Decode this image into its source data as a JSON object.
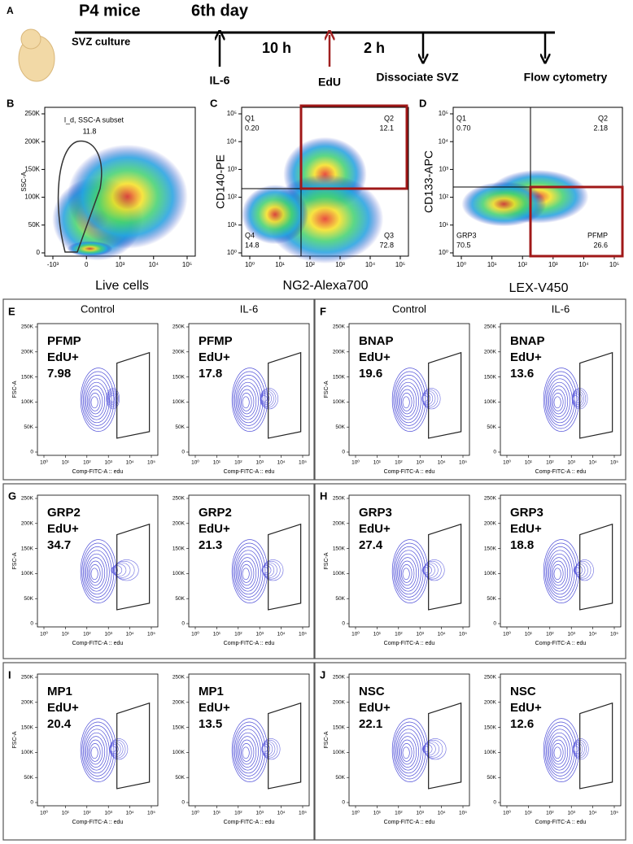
{
  "timeline": {
    "letter": "A",
    "mouse": "P4 mice",
    "day": "6th day",
    "culture": "SVZ culture",
    "step1": "IL-6",
    "gap1": "10 h",
    "step2": "EdU",
    "gap2": "2 h",
    "step3": "Dissociate SVZ",
    "step4": "Flow cytometry"
  },
  "gating": [
    {
      "letter": "B",
      "ylabel": "SSC-A",
      "xlabel": "Live cells",
      "yticks": [
        "250K",
        "200K",
        "150K",
        "100K",
        "50K",
        "0"
      ],
      "xticks": [
        "-10³",
        "0",
        "10³",
        "10⁴",
        "10⁵"
      ],
      "gate_name": "l_d, SSC-A subset",
      "gate_value": "11.8"
    },
    {
      "letter": "C",
      "ylabel": "CD140-PE",
      "xlabel": "NG2-Alexa700",
      "yticks": [
        "10⁵",
        "10⁴",
        "10³",
        "10²",
        "10¹",
        "10⁰"
      ],
      "xticks": [
        "10⁰",
        "10¹",
        "10²",
        "10³",
        "10⁴",
        "10⁵"
      ],
      "quadrants": [
        {
          "name": "Q1",
          "value": "0.20"
        },
        {
          "name": "Q2",
          "value": "12.1"
        },
        {
          "name": "Q4",
          "value": "14.8"
        },
        {
          "name": "Q3",
          "value": "72.8"
        }
      ]
    },
    {
      "letter": "D",
      "ylabel": "CD133-APC",
      "xlabel": "LEX-V450",
      "yticks": [
        "10⁵",
        "10⁴",
        "10³",
        "10²",
        "10¹",
        "10⁰"
      ],
      "xticks": [
        "10⁰",
        "10¹",
        "10²",
        "10³",
        "10⁴",
        "10⁵"
      ],
      "quadrants": [
        {
          "name": "Q1",
          "value": "0.70"
        },
        {
          "name": "Q2",
          "value": "2.18"
        },
        {
          "name": "GRP3",
          "value": "70.5"
        },
        {
          "name": "PFMP",
          "value": "26.6"
        }
      ]
    }
  ],
  "contour_axes": {
    "ylabel": "FSC-A",
    "xlabel": "Comp-FITC-A :: edu",
    "yticks": [
      "250K",
      "200K",
      "150K",
      "100K",
      "50K",
      "0"
    ],
    "xticks": [
      "10⁰",
      "10¹",
      "10²",
      "10³",
      "10⁴",
      "10⁵"
    ]
  },
  "contour_panels": [
    {
      "letter": "E",
      "columns": [
        "Control",
        "IL-6"
      ],
      "plots": [
        {
          "population": "PFMP",
          "marker": "EdU+",
          "value": "7.98"
        },
        {
          "population": "PFMP",
          "marker": "EdU+",
          "value": "17.8"
        }
      ]
    },
    {
      "letter": "F",
      "columns": [
        "Control",
        "IL-6"
      ],
      "plots": [
        {
          "population": "BNAP",
          "marker": "EdU+",
          "value": "19.6"
        },
        {
          "population": "BNAP",
          "marker": "EdU+",
          "value": "13.6"
        }
      ]
    },
    {
      "letter": "G",
      "plots": [
        {
          "population": "GRP2",
          "marker": "EdU+",
          "value": "34.7"
        },
        {
          "population": "GRP2",
          "marker": "EdU+",
          "value": "21.3"
        }
      ]
    },
    {
      "letter": "H",
      "plots": [
        {
          "population": "GRP3",
          "marker": "EdU+",
          "value": "27.4"
        },
        {
          "population": "GRP3",
          "marker": "EdU+",
          "value": "18.8"
        }
      ]
    },
    {
      "letter": "I",
      "plots": [
        {
          "population": "MP1",
          "marker": "EdU+",
          "value": "20.4"
        },
        {
          "population": "MP1",
          "marker": "EdU+",
          "value": "13.5"
        }
      ]
    },
    {
      "letter": "J",
      "plots": [
        {
          "population": "NSC",
          "marker": "EdU+",
          "value": "22.1"
        },
        {
          "population": "NSC",
          "marker": "EdU+",
          "value": "12.6"
        }
      ]
    }
  ]
}
